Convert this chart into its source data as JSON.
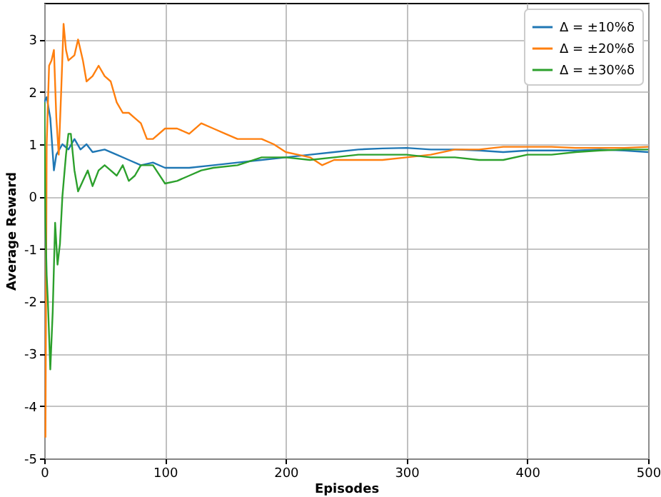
{
  "chart_data": {
    "type": "line",
    "xlabel": "Episodes",
    "ylabel": "Average Reward",
    "xlim": [
      0,
      500
    ],
    "xticks": [
      0,
      100,
      200,
      300,
      400,
      500
    ],
    "ylim": [
      -5,
      3.7
    ],
    "yticks": [
      -5,
      -4,
      -3,
      -2,
      -1,
      0,
      1,
      2,
      3
    ],
    "grid": true,
    "legend": "top right",
    "series": [
      {
        "name": "Δ = ±10%δ",
        "color": "#1f77b4",
        "x": [
          0,
          2,
          5,
          8,
          10,
          15,
          20,
          25,
          30,
          35,
          40,
          50,
          60,
          70,
          80,
          90,
          100,
          120,
          140,
          160,
          180,
          200,
          220,
          240,
          260,
          280,
          300,
          320,
          340,
          360,
          380,
          400,
          420,
          440,
          460,
          480,
          500
        ],
        "values": [
          1.8,
          1.9,
          1.5,
          0.5,
          0.8,
          1.0,
          0.9,
          1.1,
          0.9,
          1.0,
          0.85,
          0.9,
          0.8,
          0.7,
          0.6,
          0.65,
          0.55,
          0.55,
          0.6,
          0.65,
          0.7,
          0.75,
          0.8,
          0.85,
          0.9,
          0.92,
          0.93,
          0.9,
          0.9,
          0.88,
          0.85,
          0.88,
          0.88,
          0.88,
          0.9,
          0.88,
          0.85
        ]
      },
      {
        "name": "Δ = ±20%δ",
        "color": "#ff7f0e",
        "x": [
          1,
          2,
          4,
          6,
          8,
          10,
          12,
          14,
          16,
          18,
          20,
          25,
          28,
          32,
          35,
          40,
          45,
          50,
          55,
          60,
          65,
          70,
          75,
          80,
          85,
          90,
          100,
          110,
          120,
          130,
          140,
          150,
          160,
          170,
          180,
          190,
          200,
          210,
          220,
          230,
          240,
          260,
          280,
          300,
          320,
          340,
          360,
          380,
          400,
          420,
          440,
          460,
          480,
          500
        ],
        "values": [
          -4.6,
          1.0,
          2.5,
          2.6,
          2.8,
          1.5,
          0.8,
          2.0,
          3.3,
          2.8,
          2.6,
          2.7,
          3.0,
          2.6,
          2.2,
          2.3,
          2.5,
          2.3,
          2.2,
          1.8,
          1.6,
          1.6,
          1.5,
          1.4,
          1.1,
          1.1,
          1.3,
          1.3,
          1.2,
          1.4,
          1.3,
          1.2,
          1.1,
          1.1,
          1.1,
          1.0,
          0.85,
          0.8,
          0.75,
          0.6,
          0.7,
          0.7,
          0.7,
          0.75,
          0.8,
          0.9,
          0.9,
          0.95,
          0.95,
          0.95,
          0.93,
          0.93,
          0.93,
          0.95
        ]
      },
      {
        "name": "Δ = ±30%δ",
        "color": "#2ca02c",
        "x": [
          0,
          1,
          2,
          3,
          5,
          7,
          9,
          11,
          13,
          15,
          18,
          20,
          22,
          25,
          28,
          32,
          36,
          40,
          45,
          50,
          55,
          60,
          65,
          70,
          75,
          80,
          90,
          100,
          110,
          120,
          130,
          140,
          160,
          180,
          200,
          220,
          240,
          260,
          280,
          300,
          320,
          340,
          360,
          380,
          400,
          420,
          440,
          460,
          480,
          500
        ],
        "values": [
          1.8,
          -0.5,
          -1.5,
          -2.0,
          -3.3,
          -2.2,
          -0.5,
          -1.3,
          -0.9,
          0.0,
          0.8,
          1.2,
          1.2,
          0.5,
          0.1,
          0.3,
          0.5,
          0.2,
          0.5,
          0.6,
          0.5,
          0.4,
          0.6,
          0.3,
          0.4,
          0.6,
          0.6,
          0.25,
          0.3,
          0.4,
          0.5,
          0.55,
          0.6,
          0.75,
          0.75,
          0.7,
          0.75,
          0.8,
          0.8,
          0.8,
          0.75,
          0.75,
          0.7,
          0.7,
          0.8,
          0.8,
          0.85,
          0.88,
          0.9,
          0.9
        ]
      }
    ]
  }
}
